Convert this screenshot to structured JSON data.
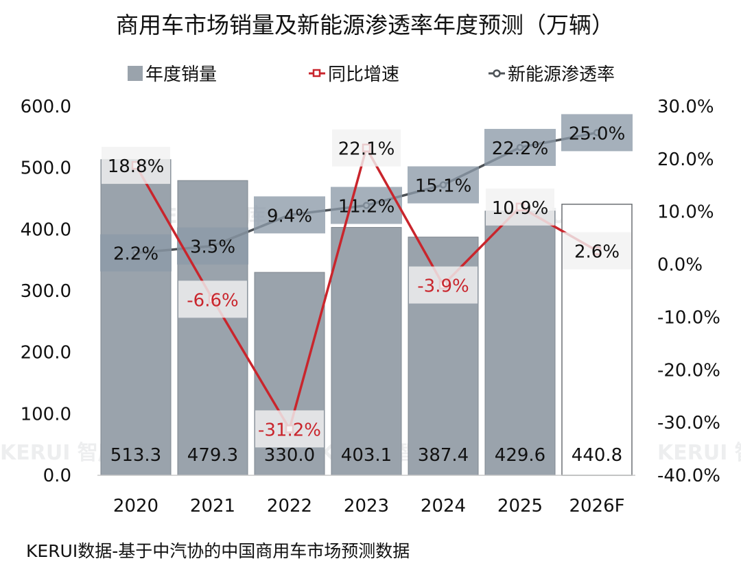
{
  "chart_data": {
    "type": "bar",
    "title": "商用车市场销量及新能源渗透率年度预测（万辆）",
    "categories": [
      "2020",
      "2021",
      "2022",
      "2023",
      "2024",
      "2025",
      "2026F"
    ],
    "series": [
      {
        "name": "年度销量",
        "kind": "bar",
        "axis": "left",
        "values": [
          513.3,
          479.3,
          330.0,
          403.1,
          387.4,
          429.6,
          440.8
        ],
        "labels": [
          "513.3",
          "479.3",
          "330.0",
          "403.1",
          "387.4",
          "429.6",
          "440.8"
        ],
        "forecast_index": 6
      },
      {
        "name": "同比增速",
        "kind": "line",
        "axis": "right",
        "values": [
          18.8,
          -6.6,
          -31.2,
          22.1,
          -3.9,
          10.9,
          2.6
        ],
        "labels": [
          "18.8%",
          "-6.6%",
          "-31.2%",
          "22.1%",
          "-3.9%",
          "10.9%",
          "2.6%"
        ]
      },
      {
        "name": "新能源渗透率",
        "kind": "line",
        "axis": "right",
        "values": [
          2.2,
          3.5,
          9.4,
          11.2,
          15.1,
          22.2,
          25.0
        ],
        "labels": [
          "2.2%",
          "3.5%",
          "9.4%",
          "11.2%",
          "15.1%",
          "22.2%",
          "25.0%"
        ]
      }
    ],
    "y_left": {
      "range": [
        0,
        600
      ],
      "ticks": [
        "0.0",
        "100.0",
        "200.0",
        "300.0",
        "400.0",
        "500.0",
        "600.0"
      ]
    },
    "y_right": {
      "range": [
        -40,
        30
      ],
      "ticks": [
        "-40.0%",
        "-30.0%",
        "-20.0%",
        "-10.0%",
        "0.0%",
        "10.0%",
        "20.0%",
        "30.0%"
      ]
    },
    "grid": false,
    "legend_position": "top",
    "colors": {
      "bar": "#9aa3ac",
      "bar_forecast": "#ffffff",
      "growth": "#c9252c",
      "penetration": "#4d5257",
      "penetration_label_bg": "#8c9aa8"
    }
  },
  "footer": {
    "source": "KERUI数据-基于中汽协的中国商用车市场预测数据"
  },
  "watermark": {
    "text": "KERUI 智库"
  }
}
